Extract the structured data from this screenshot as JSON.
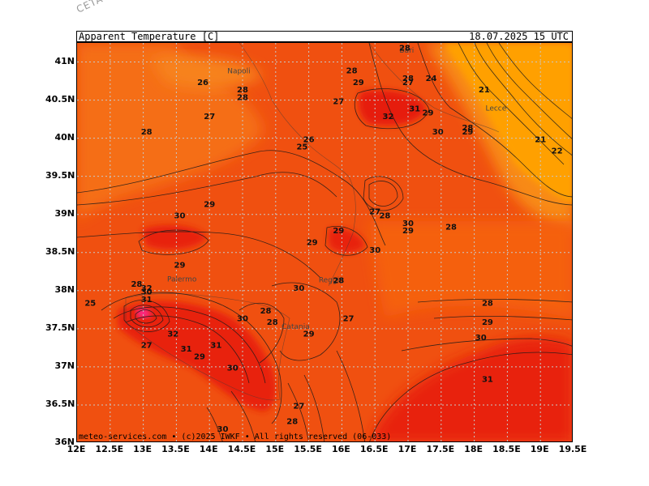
{
  "model_tag": "CETA – m",
  "header": {
    "variable": "Apparent_Temperature_[C]",
    "datetime": "18.07.2025 15 UTC"
  },
  "footer": "meteo-services.com • (c)2025 IWKF • All rights reserved (06-033)",
  "axes": {
    "lat_labels": [
      "41N",
      "40.5N",
      "40N",
      "39.5N",
      "39N",
      "38.5N",
      "38N",
      "37.5N",
      "37N",
      "36.5N",
      "36N"
    ],
    "lon_labels": [
      "12E",
      "12.5E",
      "13E",
      "13.5E",
      "14E",
      "14.5E",
      "15E",
      "15.5E",
      "16E",
      "16.5E",
      "17E",
      "17.5E",
      "18E",
      "18.5E",
      "19E",
      "19.5E"
    ],
    "lat_range": [
      36.0,
      41.25
    ],
    "lon_range": [
      12.0,
      19.5
    ],
    "grid": "dotted"
  },
  "cities": [
    {
      "name": "Napoli",
      "lon": 14.27,
      "lat": 40.85
    },
    {
      "name": "Bari",
      "lon": 16.87,
      "lat": 41.12
    },
    {
      "name": "Lecce",
      "lon": 18.17,
      "lat": 40.36
    },
    {
      "name": "Palermo",
      "lon": 13.36,
      "lat": 38.12
    },
    {
      "name": "Catania",
      "lon": 15.09,
      "lat": 37.5
    },
    {
      "name": "Reggio",
      "lon": 15.65,
      "lat": 38.11
    }
  ],
  "contour_labels": [
    {
      "v": "26",
      "lon": 13.9,
      "lat": 40.7
    },
    {
      "v": "27",
      "lon": 14.0,
      "lat": 40.25
    },
    {
      "v": "28",
      "lon": 14.5,
      "lat": 40.6
    },
    {
      "v": "28",
      "lon": 14.5,
      "lat": 40.5
    },
    {
      "v": "28",
      "lon": 13.05,
      "lat": 40.05
    },
    {
      "v": "28",
      "lon": 16.15,
      "lat": 40.85
    },
    {
      "v": "29",
      "lon": 16.25,
      "lat": 40.7
    },
    {
      "v": "27",
      "lon": 15.95,
      "lat": 40.45
    },
    {
      "v": "26",
      "lon": 15.5,
      "lat": 39.95
    },
    {
      "v": "25",
      "lon": 15.4,
      "lat": 39.85
    },
    {
      "v": "28",
      "lon": 16.95,
      "lat": 41.15
    },
    {
      "v": "28",
      "lon": 17.0,
      "lat": 40.75
    },
    {
      "v": "27",
      "lon": 17.0,
      "lat": 40.7
    },
    {
      "v": "24",
      "lon": 17.35,
      "lat": 40.75
    },
    {
      "v": "21",
      "lon": 18.15,
      "lat": 40.6
    },
    {
      "v": "32",
      "lon": 16.7,
      "lat": 40.25
    },
    {
      "v": "31",
      "lon": 17.1,
      "lat": 40.35
    },
    {
      "v": "29",
      "lon": 17.3,
      "lat": 40.3
    },
    {
      "v": "30",
      "lon": 17.45,
      "lat": 40.05
    },
    {
      "v": "28",
      "lon": 17.9,
      "lat": 40.1
    },
    {
      "v": "29",
      "lon": 17.9,
      "lat": 40.05
    },
    {
      "v": "21",
      "lon": 19.0,
      "lat": 39.95
    },
    {
      "v": "22",
      "lon": 19.25,
      "lat": 39.8
    },
    {
      "v": "29",
      "lon": 14.0,
      "lat": 39.1
    },
    {
      "v": "30",
      "lon": 13.55,
      "lat": 38.95
    },
    {
      "v": "27",
      "lon": 16.5,
      "lat": 39.0
    },
    {
      "v": "28",
      "lon": 16.65,
      "lat": 38.95
    },
    {
      "v": "30",
      "lon": 17.0,
      "lat": 38.85
    },
    {
      "v": "29",
      "lon": 17.0,
      "lat": 38.75
    },
    {
      "v": "28",
      "lon": 17.65,
      "lat": 38.8
    },
    {
      "v": "29",
      "lon": 15.95,
      "lat": 38.75
    },
    {
      "v": "29",
      "lon": 15.55,
      "lat": 38.6
    },
    {
      "v": "30",
      "lon": 16.5,
      "lat": 38.5
    },
    {
      "v": "29",
      "lon": 13.55,
      "lat": 38.3
    },
    {
      "v": "28",
      "lon": 12.9,
      "lat": 38.05
    },
    {
      "v": "32",
      "lon": 13.05,
      "lat": 38.0
    },
    {
      "v": "30",
      "lon": 13.05,
      "lat": 37.95
    },
    {
      "v": "31",
      "lon": 13.05,
      "lat": 37.85
    },
    {
      "v": "25",
      "lon": 12.2,
      "lat": 37.8
    },
    {
      "v": "30",
      "lon": 15.35,
      "lat": 38.0
    },
    {
      "v": "28",
      "lon": 15.95,
      "lat": 38.1
    },
    {
      "v": "30",
      "lon": 14.5,
      "lat": 37.6
    },
    {
      "v": "28",
      "lon": 14.85,
      "lat": 37.7
    },
    {
      "v": "28",
      "lon": 14.95,
      "lat": 37.55
    },
    {
      "v": "32",
      "lon": 13.45,
      "lat": 37.4
    },
    {
      "v": "27",
      "lon": 13.05,
      "lat": 37.25
    },
    {
      "v": "31",
      "lon": 13.65,
      "lat": 37.2
    },
    {
      "v": "31",
      "lon": 14.1,
      "lat": 37.25
    },
    {
      "v": "29",
      "lon": 13.85,
      "lat": 37.1
    },
    {
      "v": "30",
      "lon": 14.35,
      "lat": 36.95
    },
    {
      "v": "29",
      "lon": 15.5,
      "lat": 37.4
    },
    {
      "v": "27",
      "lon": 16.1,
      "lat": 37.6
    },
    {
      "v": "28",
      "lon": 18.2,
      "lat": 37.8
    },
    {
      "v": "29",
      "lon": 18.2,
      "lat": 37.55
    },
    {
      "v": "30",
      "lon": 18.1,
      "lat": 37.35
    },
    {
      "v": "31",
      "lon": 18.2,
      "lat": 36.8
    },
    {
      "v": "27",
      "lon": 15.35,
      "lat": 36.45
    },
    {
      "v": "28",
      "lon": 15.25,
      "lat": 36.25
    },
    {
      "v": "30",
      "lon": 14.2,
      "lat": 36.15
    }
  ],
  "colors": {
    "base": "#f04a10",
    "warm": "#e8200e",
    "hot": "#e80000",
    "peak": "#ff1aa0",
    "cool": "#f56a10",
    "coolest": "#ffa000"
  }
}
